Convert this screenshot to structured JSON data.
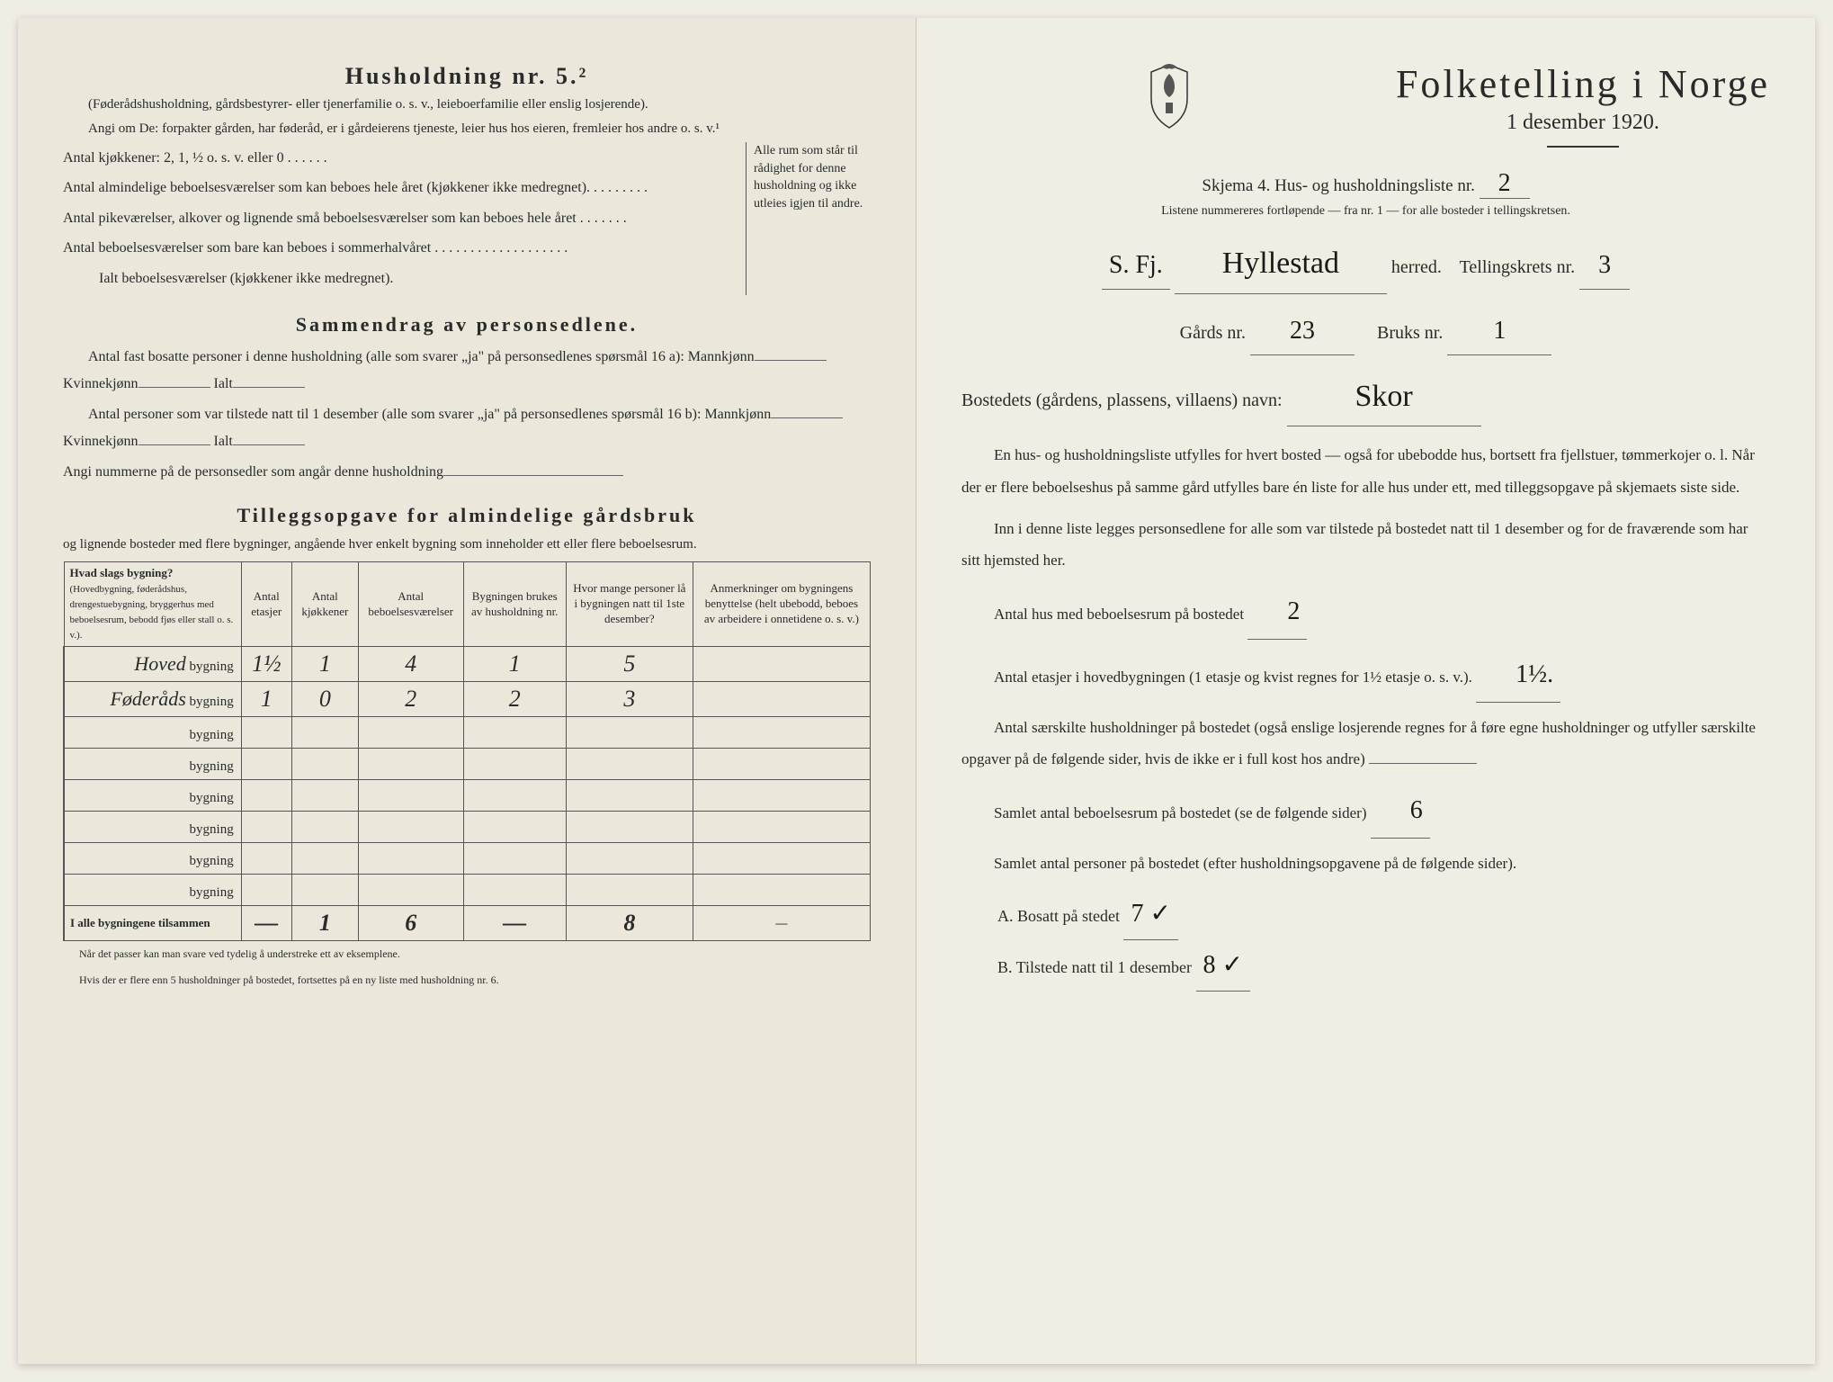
{
  "left": {
    "heading": "Husholdning nr. 5.²",
    "para1": "(Føderådshusholdning, gårdsbestyrer- eller tjenerfamilie o. s. v., leieboerfamilie eller enslig losjerende).",
    "para2": "Angi om De: forpakter gården, har føderåd, er i gårdeierens tjeneste, leier hus hos eieren, fremleier hos andre o. s. v.¹",
    "kitchenLine": "Antal kjøkkener: 2, 1, ½ o. s. v. eller 0 . . . . . .",
    "room1": "Antal almindelige beboelsesværelser som kan beboes hele året (kjøkkener ikke medregnet). . . . . . . . .",
    "room2": "Antal pikeværelser, alkover og lignende små beboelsesværelser som kan beboes hele året . . . . . . .",
    "room3": "Antal beboelsesværelser som bare kan beboes i sommerhalvåret . . . . . . . . . . . . . . . . . . .",
    "roomTotal": "Ialt beboelsesværelser (kjøkkener ikke medregnet).",
    "braceText": "Alle rum som står til rådighet for denne husholdning og ikke utleies igjen til andre.",
    "sec2h": "Sammendrag av personsedlene.",
    "sec2a": "Antal fast bosatte personer i denne husholdning (alle som svarer „ja\" på personsedlenes spørsmål 16 a): Mannkjønn",
    "sec2aK": "Kvinnekjønn",
    "sec2aI": "Ialt",
    "sec2b": "Antal personer som var tilstede natt til 1 desember (alle som svarer „ja\" på personsedlenes spørsmål 16 b): Mannkjønn",
    "sec2note": "Angi nummerne på de personsedler som angår denne husholdning",
    "sec3h": "Tilleggsopgave for almindelige gårdsbruk",
    "sec3sub": "og lignende bosteder med flere bygninger, angående hver enkelt bygning som inneholder ett eller flere beboelsesrum.",
    "th1": "Hvad slags bygning?",
    "th1sub": "(Hovedbygning, føderådshus, drengestuebygning, bryggerhus med beboelsesrum, bebodd fjøs eller stall o. s. v.).",
    "th2": "Antal etasjer",
    "th3": "Antal kjøkkener",
    "th4": "Antal beboelsesværelser",
    "th5": "Bygningen brukes av husholdning nr.",
    "th6": "Hvor mange personer lå i bygningen natt til 1ste desember?",
    "th7": "Anmerkninger om bygningens benyttelse (helt ubebodd, beboes av arbeidere i onnetidene o. s. v.)",
    "rowLabel": "bygning",
    "rows": [
      {
        "name": "Hoved",
        "c1": "1½",
        "c2": "1",
        "c3": "4",
        "c4": "1",
        "c5": "5",
        "c6": ""
      },
      {
        "name": "Føderåds",
        "c1": "1",
        "c2": "0",
        "c3": "2",
        "c4": "2",
        "c5": "3",
        "c6": ""
      },
      {
        "name": "",
        "c1": "",
        "c2": "",
        "c3": "",
        "c4": "",
        "c5": "",
        "c6": ""
      },
      {
        "name": "",
        "c1": "",
        "c2": "",
        "c3": "",
        "c4": "",
        "c5": "",
        "c6": ""
      },
      {
        "name": "",
        "c1": "",
        "c2": "",
        "c3": "",
        "c4": "",
        "c5": "",
        "c6": ""
      },
      {
        "name": "",
        "c1": "",
        "c2": "",
        "c3": "",
        "c4": "",
        "c5": "",
        "c6": ""
      },
      {
        "name": "",
        "c1": "",
        "c2": "",
        "c3": "",
        "c4": "",
        "c5": "",
        "c6": ""
      },
      {
        "name": "",
        "c1": "",
        "c2": "",
        "c3": "",
        "c4": "",
        "c5": "",
        "c6": ""
      }
    ],
    "totalRow": {
      "label": "I alle bygningene tilsammen",
      "c1": "—",
      "c2": "1",
      "c3": "6",
      "c4": "—",
      "c5": "8",
      "c6": "—"
    },
    "foot1": "Når det passer kan man svare ved tydelig å understreke ett av eksemplene.",
    "foot2": "Hvis der er flere enn 5 husholdninger på bostedet, fortsettes på en ny liste med husholdning nr. 6."
  },
  "right": {
    "title": "Folketelling i Norge",
    "date": "1 desember 1920.",
    "skjema": "Skjema 4.  Hus- og husholdningsliste nr.",
    "skjemaNr": "2",
    "listInfo": "Listene nummereres fortløpende — fra nr. 1 — for alle bosteder i tellingskretsen.",
    "fylke": "S. Fj.",
    "herredHw": "Hyllestad",
    "herredLbl": "herred.",
    "kretsLbl": "Tellingskrets nr.",
    "kretsNr": "3",
    "gardLbl": "Gårds nr.",
    "gardNr": "23",
    "bruksLbl": "Bruks nr.",
    "bruksNr": "1",
    "bostedLbl": "Bostedets (gårdens, plassens, villaens) navn:",
    "bostedHw": "Skor",
    "p1": "En hus- og husholdningsliste utfylles for hvert bosted — også for ubebodde hus, bortsett fra fjellstuer, tømmerkojer o. l.  Når der er flere beboelseshus på samme gård utfylles bare én liste for alle hus under ett, med tilleggsopgave på skjemaets siste side.",
    "p2": "Inn i denne liste legges personsedlene for alle som var tilstede på bostedet natt til 1 desember og for de fraværende som har sitt hjemsted her.",
    "q1": "Antal hus med beboelsesrum på bostedet",
    "q1v": "2",
    "q2": "Antal etasjer i hovedbygningen (1 etasje og kvist regnes for 1½ etasje o. s. v.).",
    "q2v": "1½.",
    "q3": "Antal særskilte husholdninger på bostedet (også enslige losjerende regnes for å føre egne husholdninger og utfyller særskilte opgaver på de følgende sider, hvis de ikke er i full kost hos andre)",
    "q4": "Samlet antal beboelsesrum på bostedet (se de følgende sider)",
    "q4v": "6",
    "q5": "Samlet antal personer på bostedet (efter husholdningsopgavene på de følgende sider).",
    "qA": "A.  Bosatt på stedet",
    "qAv": "7 ✓",
    "qB": "B.  Tilstede natt til 1 desember",
    "qBv": "8 ✓"
  }
}
